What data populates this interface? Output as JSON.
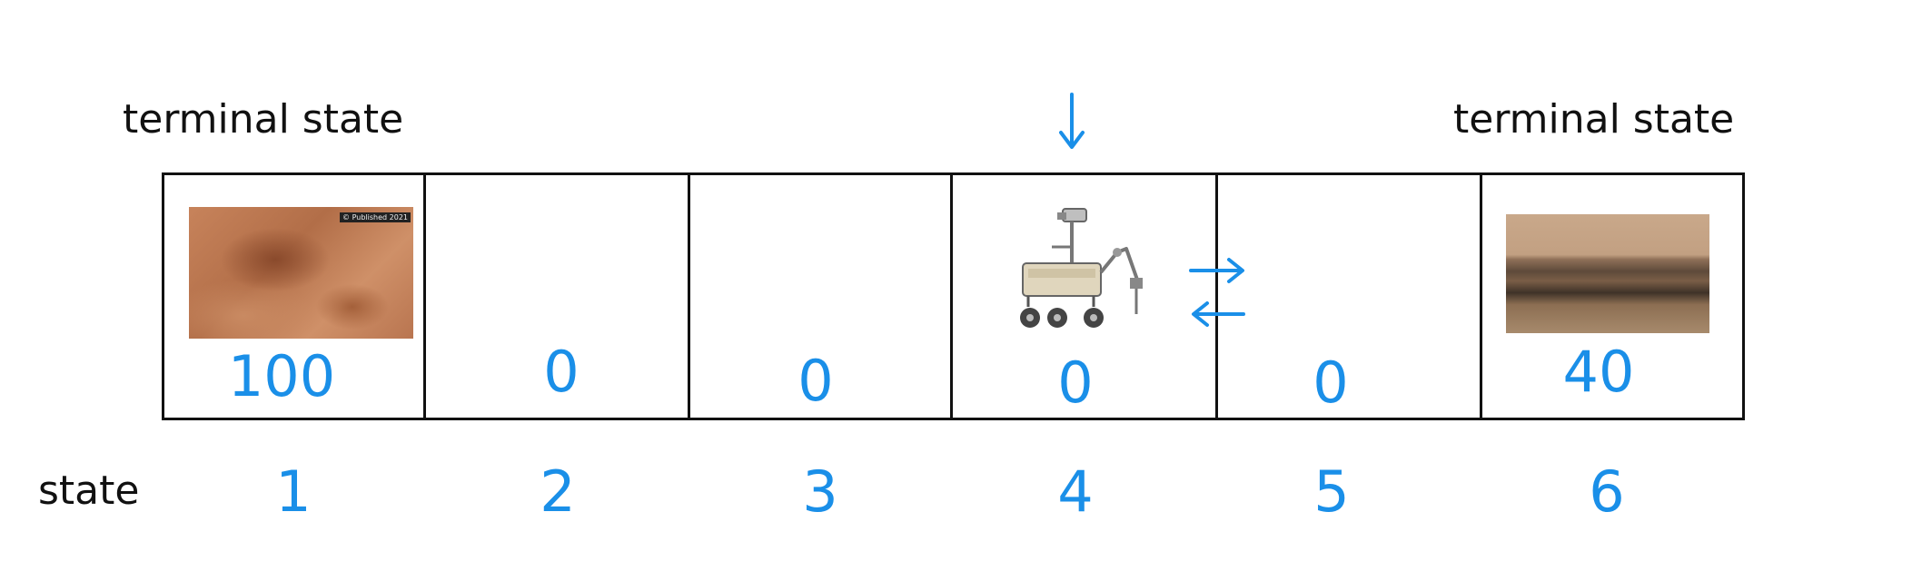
{
  "labels": {
    "terminal_left": "terminal state",
    "terminal_right": "terminal state",
    "state": "state"
  },
  "states": [
    {
      "number": "1",
      "reward": "100",
      "image": "crater-photo"
    },
    {
      "number": "2",
      "reward": "0"
    },
    {
      "number": "3",
      "reward": "0"
    },
    {
      "number": "4",
      "reward": "0",
      "image": "rover-icon"
    },
    {
      "number": "5",
      "reward": "0"
    },
    {
      "number": "6",
      "reward": "40",
      "image": "canyon-photo"
    }
  ],
  "current_state_marker": "down-arrow-icon",
  "actions_icon": "left-right-arrows-icon",
  "photo_tag": "© Published 2021",
  "colors": {
    "ink": "#1a8fe8",
    "border": "#111111",
    "text": "#111111"
  }
}
